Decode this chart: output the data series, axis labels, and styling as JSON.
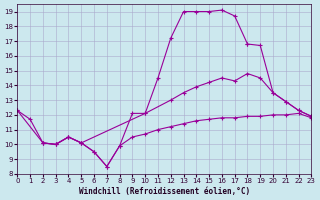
{
  "bg_color": "#cce8ee",
  "grid_color": "#aaaacc",
  "line_color": "#990099",
  "xlabel": "Windchill (Refroidissement éolien,°C)",
  "xlim": [
    0,
    23
  ],
  "ylim": [
    8,
    19.5
  ],
  "xticks": [
    0,
    1,
    2,
    3,
    4,
    5,
    6,
    7,
    8,
    9,
    10,
    11,
    12,
    13,
    14,
    15,
    16,
    17,
    18,
    19,
    20,
    21,
    22,
    23
  ],
  "yticks": [
    8,
    9,
    10,
    11,
    12,
    13,
    14,
    15,
    16,
    17,
    18,
    19
  ],
  "curve_upper_x": [
    0,
    1,
    2,
    3,
    4,
    5,
    6,
    7,
    8,
    9,
    10,
    11,
    12,
    13,
    14,
    15,
    16,
    17,
    18
  ],
  "curve_upper_y": [
    12.3,
    11.7,
    10.1,
    10.0,
    10.5,
    10.1,
    9.5,
    8.5,
    9.9,
    12.1,
    12.1,
    14.5,
    17.2,
    19.0,
    19.0,
    19.0,
    19.1,
    18.7,
    16.8
  ],
  "curve_upper_down_x": [
    18,
    19,
    20,
    21,
    22,
    23
  ],
  "curve_upper_down_y": [
    16.8,
    16.7,
    13.5,
    12.9,
    12.3,
    11.9
  ],
  "curve_mid_x": [
    0,
    2,
    3,
    4,
    5,
    10,
    12,
    13,
    14,
    15,
    16,
    17,
    18,
    19,
    20,
    21,
    22,
    23
  ],
  "curve_mid_y": [
    12.3,
    10.1,
    10.0,
    10.5,
    10.1,
    12.1,
    13.0,
    13.5,
    13.9,
    14.2,
    14.5,
    14.3,
    14.8,
    14.5,
    13.5,
    12.9,
    12.3,
    11.9
  ],
  "curve_low_x": [
    2,
    3,
    4,
    5,
    6,
    7,
    8,
    9,
    10,
    11,
    12,
    13,
    14,
    15,
    16,
    17,
    18,
    19,
    20,
    21,
    22,
    23
  ],
  "curve_low_y": [
    10.1,
    10.0,
    10.5,
    10.1,
    9.5,
    8.5,
    9.9,
    10.5,
    10.7,
    11.0,
    11.2,
    11.4,
    11.6,
    11.7,
    11.8,
    11.8,
    11.9,
    11.9,
    12.0,
    12.0,
    12.1,
    11.8
  ]
}
